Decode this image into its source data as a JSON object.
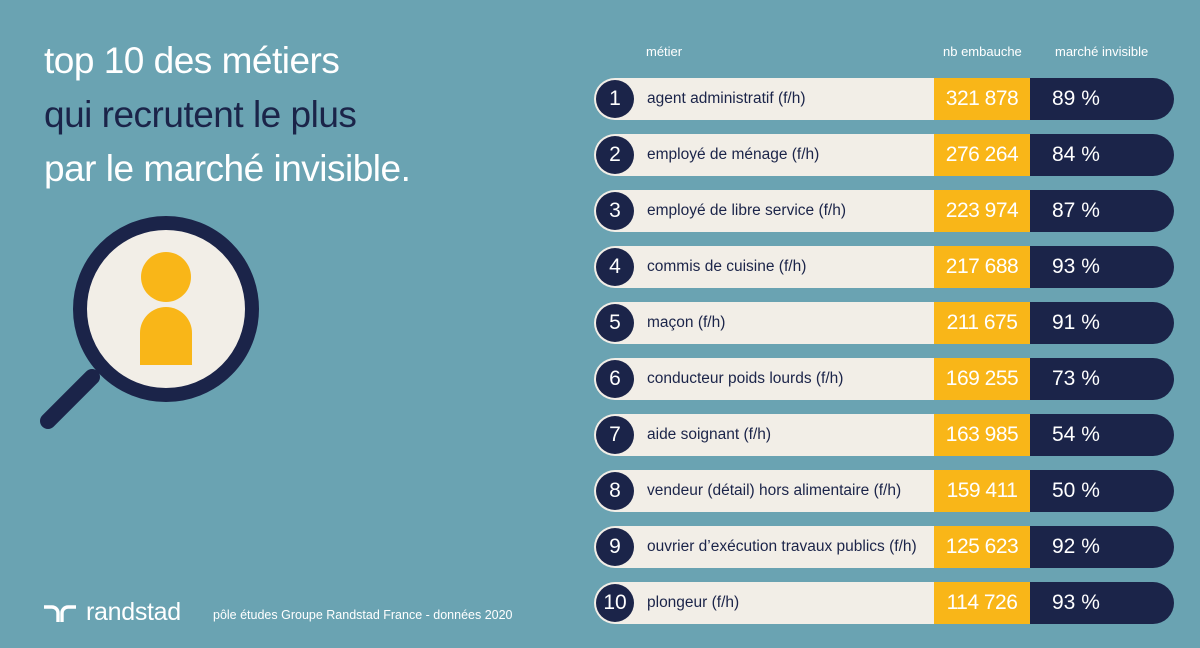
{
  "title": {
    "line1": "top 10 des métiers",
    "line2": "qui recrutent le plus",
    "line3": "par le marché invisible."
  },
  "colors": {
    "background": "#6aa3b2",
    "navy": "#1b2449",
    "yellow": "#f9b618",
    "cream": "#f2eee7"
  },
  "chart_data": {
    "type": "table",
    "columns": [
      "métier",
      "nb embauche",
      "marché invisible"
    ],
    "rows": [
      {
        "rank": "1",
        "metier": "agent administratif (f/h)",
        "hires": "321 878",
        "invisible": "89 %"
      },
      {
        "rank": "2",
        "metier": "employé de ménage (f/h)",
        "hires": "276 264",
        "invisible": "84 %"
      },
      {
        "rank": "3",
        "metier": "employé de libre service (f/h)",
        "hires": "223 974",
        "invisible": "87 %"
      },
      {
        "rank": "4",
        "metier": "commis de cuisine (f/h)",
        "hires": "217 688",
        "invisible": "93 %"
      },
      {
        "rank": "5",
        "metier": "maçon (f/h)",
        "hires": "211 675",
        "invisible": "91 %"
      },
      {
        "rank": "6",
        "metier": "conducteur poids lourds (f/h)",
        "hires": "169 255",
        "invisible": "73 %"
      },
      {
        "rank": "7",
        "metier": "aide soignant (f/h)",
        "hires": "163 985",
        "invisible": "54 %"
      },
      {
        "rank": "8",
        "metier": "vendeur (détail) hors alimentaire (f/h)",
        "hires": "159 411",
        "invisible": "50 %"
      },
      {
        "rank": "9",
        "metier": "ouvrier d’exécution travaux publics (f/h)",
        "hires": "125 623",
        "invisible": "92 %"
      },
      {
        "rank": "10",
        "metier": "plongeur (f/h)",
        "hires": "114 726",
        "invisible": "93 %"
      }
    ]
  },
  "footer": {
    "brand": "randstad",
    "source": "pôle études Groupe Randstad France - données 2020"
  }
}
